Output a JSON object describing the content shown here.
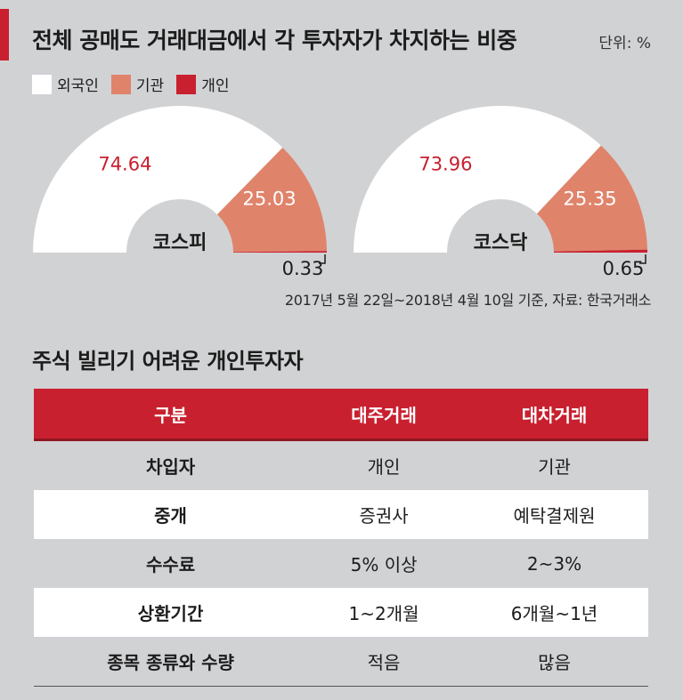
{
  "header": {
    "title": "전체 공매도 거래대금에서 각 투자자가 차지하는 비중",
    "unit": "단위: %"
  },
  "legend": [
    {
      "label": "외국인",
      "color": "#ffffff"
    },
    {
      "label": "기관",
      "color": "#e0836b"
    },
    {
      "label": "개인",
      "color": "#c8202f"
    }
  ],
  "chart_data": [
    {
      "type": "pie",
      "subtype": "half-donut",
      "label": "코스피",
      "series": [
        "외국인",
        "기관",
        "개인"
      ],
      "values": [
        74.64,
        25.03,
        0.33
      ],
      "colors": [
        "#ffffff",
        "#e0836b",
        "#c8202f"
      ]
    },
    {
      "type": "pie",
      "subtype": "half-donut",
      "label": "코스닥",
      "series": [
        "외국인",
        "기관",
        "개인"
      ],
      "values": [
        73.96,
        25.35,
        0.65
      ],
      "colors": [
        "#ffffff",
        "#e0836b",
        "#c8202f"
      ]
    }
  ],
  "source": "2017년 5월 22일~2018년 4월 10일 기준, 자료: 한국거래소",
  "table": {
    "title": "주식 빌리기 어려운 개인투자자",
    "headers": [
      "구분",
      "대주거래",
      "대차거래"
    ],
    "rows": [
      [
        "차입자",
        "개인",
        "기관"
      ],
      [
        "중개",
        "증권사",
        "예탁결제원"
      ],
      [
        "수수료",
        "5% 이상",
        "2~3%"
      ],
      [
        "상환기간",
        "1~2개월",
        "6개월~1년"
      ],
      [
        "종목 종류와 수량",
        "적음",
        "많음"
      ]
    ]
  }
}
